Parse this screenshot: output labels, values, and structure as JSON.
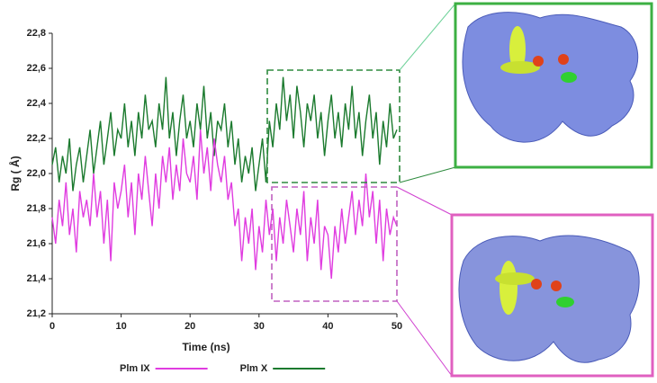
{
  "chart_data": {
    "type": "line",
    "xlabel": "Time (ns)",
    "ylabel": "Rg ( Å)",
    "xlim": [
      0,
      50
    ],
    "xticks": [
      0,
      10,
      20,
      30,
      40,
      50
    ],
    "ylim": [
      21.2,
      22.8
    ],
    "yticks": [
      {
        "value": 21.2,
        "label": "21,2"
      },
      {
        "value": 21.4,
        "label": "21,4"
      },
      {
        "value": 21.6,
        "label": "21,6"
      },
      {
        "value": 21.8,
        "label": "21,8"
      },
      {
        "value": 22.0,
        "label": "22,0"
      },
      {
        "value": 22.2,
        "label": "22,2"
      },
      {
        "value": 22.4,
        "label": "22,4"
      },
      {
        "value": 22.6,
        "label": "22,6"
      },
      {
        "value": 22.8,
        "label": "22,8"
      }
    ],
    "x": [
      0,
      0.5,
      1,
      1.5,
      2,
      2.5,
      3,
      3.5,
      4,
      4.5,
      5,
      5.5,
      6,
      6.5,
      7,
      7.5,
      8,
      8.5,
      9,
      9.5,
      10,
      10.5,
      11,
      11.5,
      12,
      12.5,
      13,
      13.5,
      14,
      14.5,
      15,
      15.5,
      16,
      16.5,
      17,
      17.5,
      18,
      18.5,
      19,
      19.5,
      20,
      20.5,
      21,
      21.5,
      22,
      22.5,
      23,
      23.5,
      24,
      24.5,
      25,
      25.5,
      26,
      26.5,
      27,
      27.5,
      28,
      28.5,
      29,
      29.5,
      30,
      30.5,
      31,
      31.5,
      32,
      32.5,
      33,
      33.5,
      34,
      34.5,
      35,
      35.5,
      36,
      36.5,
      37,
      37.5,
      38,
      38.5,
      39,
      39.5,
      40,
      40.5,
      41,
      41.5,
      42,
      42.5,
      43,
      43.5,
      44,
      44.5,
      45,
      45.5,
      46,
      46.5,
      47,
      47.5,
      48,
      48.5,
      49,
      49.5,
      50
    ],
    "series": [
      {
        "name": "Plm X",
        "color": "#1b7a2e",
        "values": [
          22.05,
          22.15,
          21.95,
          22.1,
          22.0,
          22.2,
          21.9,
          22.05,
          22.15,
          21.95,
          22.1,
          22.25,
          22.0,
          22.15,
          22.3,
          22.05,
          22.2,
          22.35,
          22.1,
          22.25,
          22.2,
          22.4,
          22.15,
          22.3,
          22.1,
          22.35,
          22.2,
          22.45,
          22.25,
          22.3,
          22.15,
          22.4,
          22.25,
          22.55,
          22.2,
          22.35,
          22.1,
          22.3,
          22.45,
          22.2,
          22.3,
          22.15,
          22.4,
          22.25,
          22.5,
          22.2,
          22.35,
          22.1,
          22.3,
          22.25,
          22.4,
          22.15,
          22.3,
          22.05,
          22.2,
          21.95,
          22.1,
          22.0,
          22.15,
          21.9,
          22.05,
          22.2,
          21.95,
          22.3,
          22.15,
          22.4,
          22.25,
          22.55,
          22.3,
          22.45,
          22.2,
          22.5,
          22.35,
          22.15,
          22.4,
          22.3,
          22.45,
          22.2,
          22.35,
          22.1,
          22.3,
          22.45,
          22.2,
          22.35,
          22.15,
          22.4,
          22.25,
          22.5,
          22.2,
          22.35,
          22.1,
          22.3,
          22.45,
          22.2,
          22.35,
          22.05,
          22.3,
          22.15,
          22.4,
          22.2,
          22.25
        ]
      },
      {
        "name": "Plm IX",
        "color": "#e03ce0",
        "values": [
          21.75,
          21.6,
          21.85,
          21.7,
          21.95,
          21.65,
          21.8,
          21.55,
          21.9,
          21.75,
          21.85,
          21.7,
          22.0,
          21.75,
          21.9,
          21.6,
          21.85,
          21.5,
          21.95,
          21.8,
          21.9,
          22.05,
          21.75,
          21.95,
          21.65,
          22.0,
          21.85,
          22.1,
          21.9,
          21.7,
          22.0,
          21.8,
          22.1,
          21.95,
          22.15,
          21.85,
          22.05,
          21.9,
          22.2,
          22.0,
          21.95,
          22.1,
          21.85,
          22.25,
          22.0,
          22.15,
          21.9,
          22.2,
          22.05,
          21.95,
          22.1,
          21.85,
          21.95,
          21.7,
          21.8,
          21.5,
          21.75,
          21.6,
          21.8,
          21.45,
          21.7,
          21.55,
          21.85,
          21.65,
          21.8,
          21.5,
          21.75,
          21.6,
          21.85,
          21.7,
          21.55,
          21.8,
          21.65,
          21.9,
          21.5,
          21.75,
          21.6,
          21.85,
          21.45,
          21.7,
          21.65,
          21.4,
          21.7,
          21.55,
          21.8,
          21.6,
          21.75,
          21.9,
          21.65,
          21.85,
          21.7,
          22.0,
          21.75,
          21.9,
          21.6,
          21.85,
          21.5,
          21.8,
          21.65,
          21.75,
          21.7
        ]
      }
    ]
  }
}
